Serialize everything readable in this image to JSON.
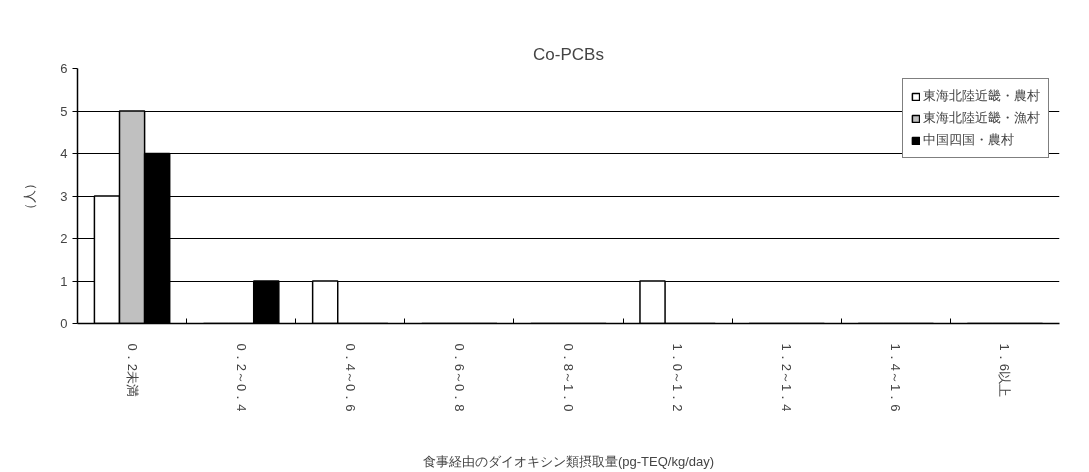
{
  "chart_data": {
    "type": "bar",
    "title": "Co-PCBs",
    "xlabel": "食事経由のダイオキシン類摂取量(pg-TEQ/kg/day)",
    "ylabel": "（人）",
    "categories": [
      "0．2未満",
      "0．2～0．4",
      "0．4～0．6",
      "0．6～0．8",
      "0．8～1．0",
      "1．0～1．2",
      "1．2～1．4",
      "1．4～1．6",
      "1．6以上"
    ],
    "series": [
      {
        "name": "東海北陸近畿・農村",
        "color": "#ffffff",
        "values": [
          3,
          0,
          1,
          0,
          0,
          1,
          0,
          0,
          0
        ]
      },
      {
        "name": "東海北陸近畿・漁村",
        "color": "#c0c0c0",
        "values": [
          5,
          0,
          0,
          0,
          0,
          0,
          0,
          0,
          0
        ]
      },
      {
        "name": "中国四国・農村",
        "color": "#000000",
        "values": [
          4,
          1,
          0,
          0,
          0,
          0,
          0,
          0,
          0
        ]
      }
    ],
    "ylim": [
      0,
      6
    ],
    "yticks": [
      0,
      1,
      2,
      3,
      4,
      5,
      6
    ],
    "grid": "y",
    "legend": "top right"
  }
}
